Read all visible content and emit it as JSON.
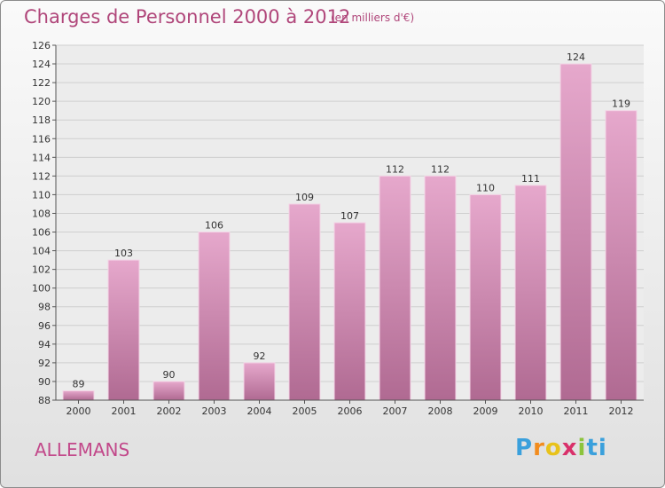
{
  "header": {
    "title": "Charges de Personnel 2000 à 2012",
    "subtitle": "(en milliers d'€)"
  },
  "footer": {
    "place_name": "ALLEMANS",
    "logo_letters": [
      "P",
      "r",
      "o",
      "x",
      "i",
      "ti"
    ]
  },
  "colors": {
    "bar_top": "#e6a8cc",
    "bar_bottom": "#b06a92",
    "title": "#b0467a",
    "grid": "#cfcfcf"
  },
  "chart_data": {
    "type": "bar",
    "title": "Charges de Personnel 2000 à 2012",
    "subtitle": "(en milliers d'€)",
    "categories": [
      "2000",
      "2001",
      "2002",
      "2003",
      "2004",
      "2005",
      "2006",
      "2007",
      "2008",
      "2009",
      "2010",
      "2011",
      "2012"
    ],
    "values": [
      89,
      103,
      90,
      106,
      92,
      109,
      107,
      112,
      112,
      110,
      111,
      124,
      119
    ],
    "ylim": [
      88,
      126
    ],
    "yticks": [
      88,
      90,
      92,
      94,
      96,
      98,
      100,
      102,
      104,
      106,
      108,
      110,
      112,
      114,
      116,
      118,
      120,
      122,
      124,
      126
    ],
    "grid": true,
    "legend": "none",
    "xlabel": "",
    "ylabel": ""
  }
}
